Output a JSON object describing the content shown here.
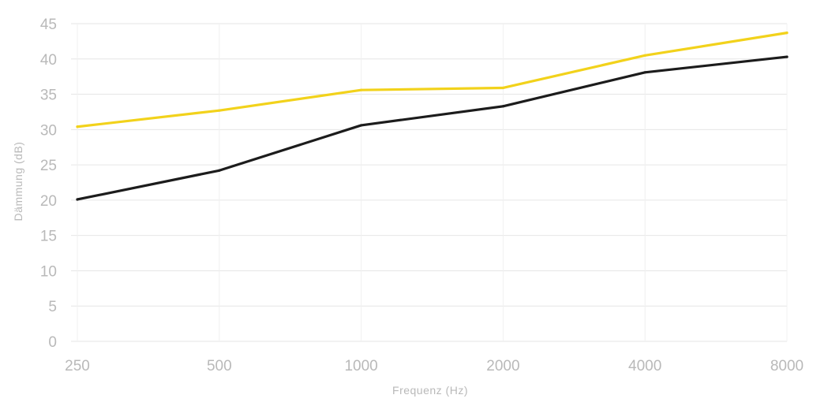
{
  "chart_data": {
    "type": "line",
    "xlabel": "Frequenz (Hz)",
    "ylabel": "Dämmung (dB)",
    "categories": [
      "250",
      "500",
      "1000",
      "2000",
      "4000",
      "8000"
    ],
    "yticks": [
      "0",
      "5",
      "10",
      "15",
      "20",
      "25",
      "30",
      "35",
      "40",
      "45"
    ],
    "ylim": [
      0,
      45
    ],
    "grid": true,
    "series": [
      {
        "color": "#f2d21b",
        "values": [
          30.4,
          32.7,
          35.6,
          35.9,
          40.5,
          43.7
        ]
      },
      {
        "color": "#1c1c1c",
        "values": [
          20.1,
          24.2,
          30.6,
          33.3,
          38.1,
          40.3
        ]
      }
    ]
  }
}
